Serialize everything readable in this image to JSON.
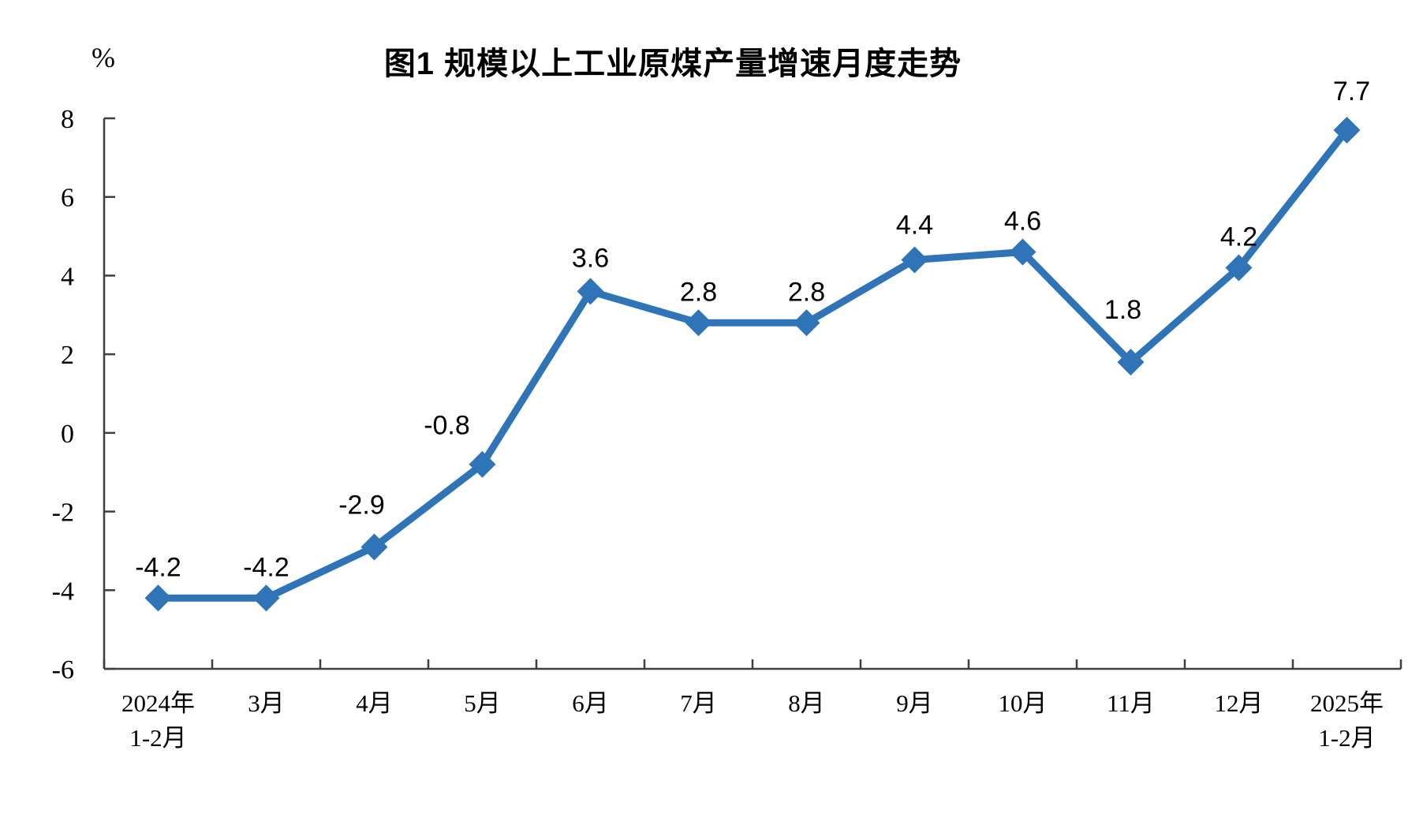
{
  "chart_data": {
    "type": "line",
    "title": "图1  规模以上工业原煤产量增速月度走势",
    "unit_label": "%",
    "categories": [
      [
        "2024年",
        "1-2月"
      ],
      [
        "3月"
      ],
      [
        "4月"
      ],
      [
        "5月"
      ],
      [
        "6月"
      ],
      [
        "7月"
      ],
      [
        "8月"
      ],
      [
        "9月"
      ],
      [
        "10月"
      ],
      [
        "11月"
      ],
      [
        "12月"
      ],
      [
        "2025年",
        "1-2月"
      ]
    ],
    "values": [
      -4.2,
      -4.2,
      -2.9,
      -0.8,
      3.6,
      2.8,
      2.8,
      4.4,
      4.6,
      1.8,
      4.2,
      7.7
    ],
    "data_labels": [
      "-4.2",
      "-4.2",
      "-2.9",
      "-0.8",
      "3.6",
      "2.8",
      "2.8",
      "4.4",
      "4.6",
      "1.8",
      "4.2",
      "7.7"
    ],
    "ylim": [
      -6,
      8
    ],
    "ytick_step": 2,
    "ytick_labels": [
      "8",
      "6",
      "4",
      "2",
      "0",
      "-2",
      "-4",
      "-6"
    ],
    "yticks": [
      8,
      6,
      4,
      2,
      0,
      -2,
      -4,
      -6
    ],
    "series_name": "规模以上工业原煤产量增速",
    "line_color": "#2E74B6",
    "marker": "diamond",
    "marker_color": "#2E74B6",
    "axis_color": "#3F3F3F",
    "label_color": "#000000",
    "grid": false,
    "legend": "none",
    "label_dx": [
      0,
      0,
      -16,
      -45,
      0,
      0,
      0,
      0,
      0,
      -10,
      0,
      6
    ],
    "label_dy": [
      0,
      0,
      -14,
      -10,
      -3,
      0,
      0,
      -5,
      0,
      -27,
      0,
      -10
    ]
  }
}
